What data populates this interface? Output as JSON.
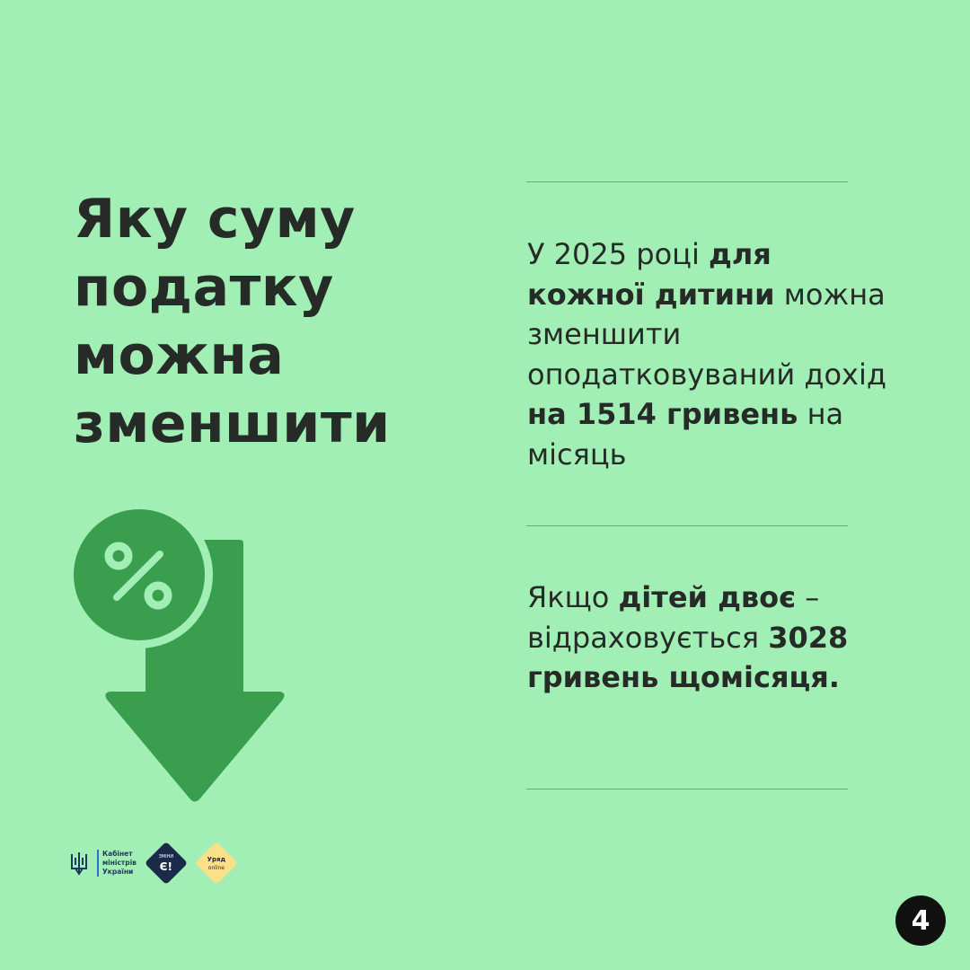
{
  "title": {
    "lines": [
      "Яку суму",
      "податку",
      "можна",
      "зменшити"
    ]
  },
  "block1": {
    "t1": "У 2025 році ",
    "b1": "для кожної дитини",
    "t2": " можна зменшити оподатковуваний дохід ",
    "b2": "на 1514 гривень",
    "t3": " на місяць"
  },
  "block2": {
    "t1": "Якщо ",
    "b1": "дітей двоє",
    "t2": " – відраховується ",
    "b2": "3028 гривень щомісяця."
  },
  "icon": {
    "name": "percent-down-arrow-icon",
    "color": "#3a9e4f"
  },
  "logos": {
    "cabinet": [
      "Кабінет",
      "міністрів",
      "України"
    ],
    "zminy": {
      "top": "ЗМІНИ",
      "main": "Є!"
    },
    "uriad": {
      "top": "Уряд",
      "bottom": "online"
    }
  },
  "page_number": "4"
}
